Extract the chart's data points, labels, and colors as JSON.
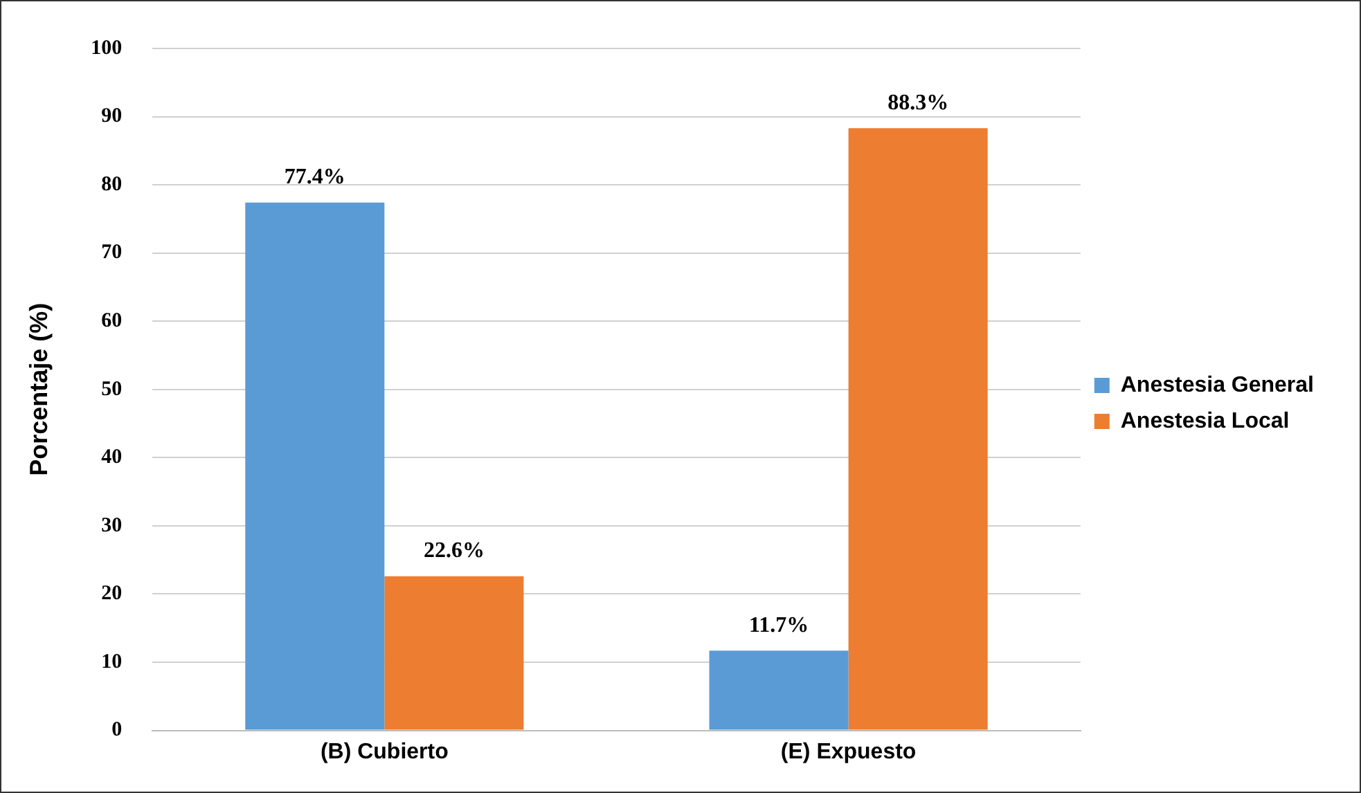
{
  "chart_data": {
    "type": "bar",
    "ylabel": "Porcentaje (%)",
    "categories": [
      "(B) Cubierto",
      "(E) Expuesto"
    ],
    "series": [
      {
        "name": "Anestesia General",
        "color": "#5b9bd5",
        "values": [
          77.4,
          11.7
        ],
        "value_labels": [
          "77.4%",
          "11.7%"
        ]
      },
      {
        "name": "Anestesia Local",
        "color": "#ed7d31",
        "values": [
          22.6,
          88.3
        ],
        "value_labels": [
          "22.6%",
          "88.3%"
        ]
      }
    ],
    "ylim": [
      0,
      100
    ],
    "yticks": [
      0,
      10,
      20,
      30,
      40,
      50,
      60,
      70,
      80,
      90,
      100
    ],
    "grid": "y",
    "legend": "right"
  }
}
